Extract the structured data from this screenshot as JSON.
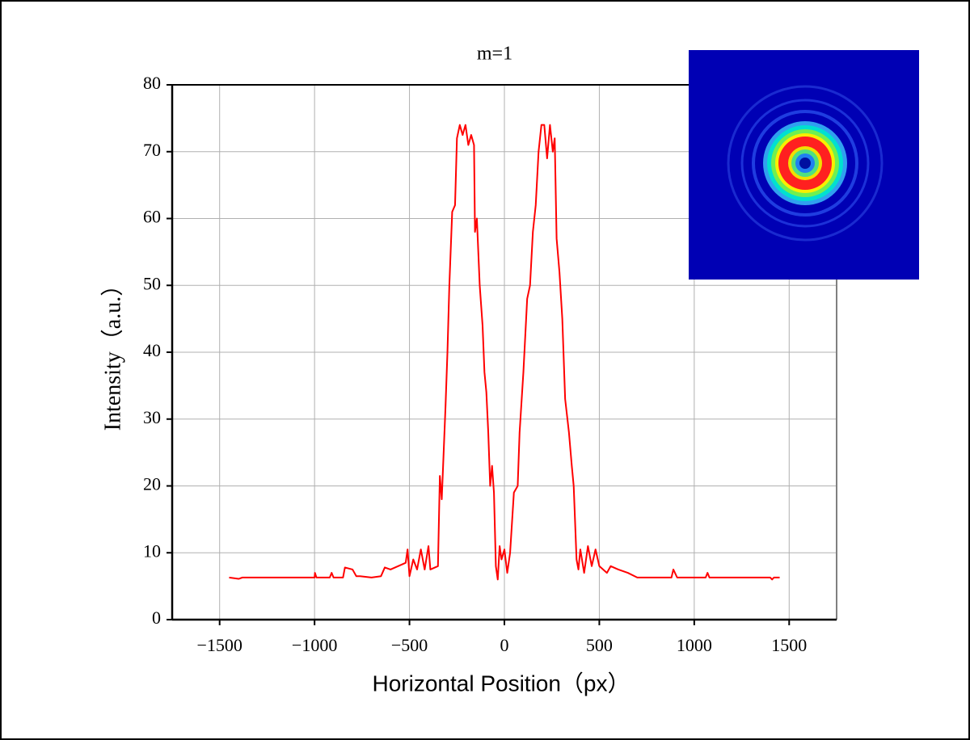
{
  "chart_data": {
    "type": "line",
    "title": "m=1",
    "x_label": "Horizontal Position（px）",
    "y_label": "Intensity（a.u.）",
    "x": [
      -1450,
      -1400,
      -1380,
      -1000,
      -998,
      -990,
      -920,
      -910,
      -900,
      -850,
      -840,
      -800,
      -780,
      -760,
      -700,
      -650,
      -630,
      -600,
      -560,
      -520,
      -510,
      -500,
      -480,
      -460,
      -440,
      -420,
      -400,
      -390,
      -350,
      -340,
      -330,
      -310,
      -300,
      -290,
      -275,
      -260,
      -250,
      -235,
      -220,
      -205,
      -190,
      -175,
      -160,
      -155,
      -145,
      -130,
      -115,
      -105,
      -95,
      -85,
      -75,
      -65,
      -55,
      -45,
      -35,
      -25,
      -15,
      0,
      15,
      30,
      50,
      70,
      80,
      100,
      120,
      135,
      150,
      165,
      180,
      195,
      210,
      225,
      240,
      255,
      265,
      275,
      290,
      305,
      320,
      340,
      355,
      365,
      380,
      390,
      400,
      420,
      440,
      460,
      480,
      500,
      540,
      560,
      600,
      650,
      700,
      750,
      800,
      880,
      890,
      910,
      1060,
      1070,
      1080,
      1400,
      1410,
      1420,
      1450
    ],
    "series": [
      {
        "name": "m=1",
        "color": "#ff0000",
        "values": [
          6.3,
          6.1,
          6.3,
          6.3,
          7,
          6.3,
          6.3,
          7,
          6.3,
          6.3,
          7.8,
          7.5,
          6.5,
          6.5,
          6.3,
          6.5,
          7.8,
          7.5,
          8,
          8.5,
          10.5,
          6.5,
          9,
          7.5,
          10.5,
          7.5,
          11,
          7.5,
          8,
          21.5,
          18,
          32,
          40,
          50,
          61,
          62,
          72,
          74,
          72.5,
          74,
          71,
          72.5,
          71,
          58,
          60,
          50,
          44,
          37,
          34,
          28,
          20,
          23,
          19,
          8,
          6,
          11,
          9,
          10.5,
          7,
          10,
          19,
          20,
          28,
          37,
          48,
          50,
          58,
          62,
          70,
          74,
          74,
          69,
          74,
          70,
          72,
          57,
          52,
          45,
          33,
          28,
          23,
          20,
          9,
          7.5,
          10.5,
          7,
          11,
          8,
          10.5,
          8,
          7,
          8,
          7.5,
          7,
          6.3,
          6.3,
          6.3,
          6.3,
          7.5,
          6.3,
          6.3,
          7,
          6.3,
          6.3,
          6,
          6.3,
          6.3
        ]
      }
    ],
    "xlim": [
      -1750,
      1750
    ],
    "xticks": [
      {
        "value": -1500,
        "label": "−1500"
      },
      {
        "value": -1000,
        "label": "−1000"
      },
      {
        "value": -500,
        "label": "−500"
      },
      0,
      500,
      1000,
      1500
    ],
    "ylim": [
      0,
      80
    ],
    "yticks": [
      0,
      10,
      20,
      30,
      40,
      50,
      60,
      70,
      80
    ],
    "grid": true
  }
}
